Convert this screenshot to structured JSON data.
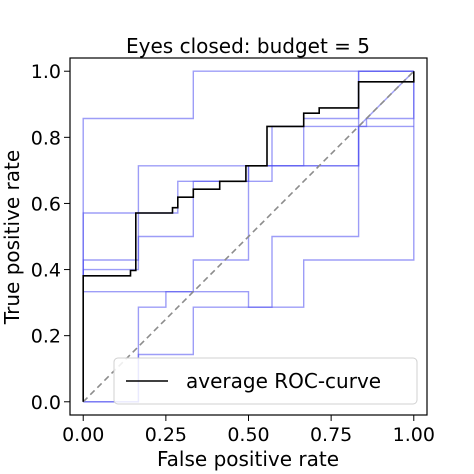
{
  "chart_data": {
    "type": "line",
    "title": "Eyes closed: budget = 5",
    "xlabel": "False positive rate",
    "ylabel": "True positive rate",
    "xlim": [
      -0.04,
      1.04
    ],
    "ylim": [
      -0.04,
      1.04
    ],
    "xticks": [
      0.0,
      0.25,
      0.5,
      0.75,
      1.0
    ],
    "xtick_labels": [
      "0.00",
      "0.25",
      "0.50",
      "0.75",
      "1.00"
    ],
    "yticks": [
      0.0,
      0.2,
      0.4,
      0.6,
      0.8,
      1.0
    ],
    "ytick_labels": [
      "0.0",
      "0.2",
      "0.4",
      "0.6",
      "0.8",
      "1.0"
    ],
    "grid": false,
    "legend": {
      "entries": [
        "average ROC-curve"
      ],
      "placement": "lower-right"
    },
    "colors": {
      "fold": "#4d4df0",
      "average": "#000000",
      "chance": "#8c8c8c"
    },
    "series": [
      {
        "x": [
          0,
          0,
          0.167,
          0.167,
          0.333,
          0.333,
          0.5,
          0.5,
          0.667,
          0.667,
          1.0
        ],
        "y": [
          0,
          0.857,
          0.857,
          0.857,
          0.857,
          1.0,
          1.0,
          1.0,
          1.0,
          1.0,
          1.0
        ]
      },
      {
        "x": [
          0,
          0,
          0.167,
          0.167,
          0.5,
          0.5,
          0.833,
          0.833,
          1.0,
          1.0
        ],
        "y": [
          0,
          0.429,
          0.429,
          0.714,
          0.714,
          0.714,
          0.714,
          1.0,
          1.0,
          1.0
        ]
      },
      {
        "x": [
          0,
          0,
          0.143,
          0.143,
          0.286,
          0.286,
          0.571,
          0.571,
          0.857,
          0.857,
          1.0,
          1.0
        ],
        "y": [
          0,
          0.571,
          0.571,
          0.571,
          0.571,
          0.667,
          0.667,
          0.833,
          0.833,
          0.857,
          0.857,
          1.0
        ]
      },
      {
        "x": [
          0,
          0,
          0.167,
          0.167,
          0.333,
          0.333,
          0.5,
          0.5,
          0.667,
          0.667,
          0.833,
          0.833,
          1.0,
          1.0
        ],
        "y": [
          0,
          0.4,
          0.4,
          0.5,
          0.5,
          0.667,
          0.667,
          0.714,
          0.714,
          0.857,
          0.857,
          1.0,
          1.0,
          1.0
        ]
      },
      {
        "x": [
          0,
          0,
          0.167,
          0.167,
          0.333,
          0.333,
          0.5,
          0.5,
          0.667,
          0.667,
          0.833,
          0.833,
          1.0
        ],
        "y": [
          0,
          0.333,
          0.333,
          0.333,
          0.333,
          0.429,
          0.429,
          0.714,
          0.714,
          0.714,
          0.714,
          0.833,
          0.833
        ]
      },
      {
        "x": [
          0,
          0,
          0.167,
          0.167,
          0.333,
          0.333,
          0.571,
          0.571,
          0.833,
          0.833,
          1.0
        ],
        "y": [
          0,
          0,
          0,
          0.143,
          0.143,
          0.286,
          0.286,
          0.5,
          0.5,
          0.833,
          1.0
        ]
      },
      {
        "x": [
          0,
          0,
          0.167,
          0.167,
          0.25,
          0.25,
          0.5,
          0.5,
          0.667,
          0.667,
          1.0,
          1.0
        ],
        "y": [
          0,
          0.0,
          0.0,
          0.286,
          0.286,
          0.333,
          0.333,
          0.286,
          0.286,
          0.429,
          0.429,
          1.0
        ]
      }
    ],
    "average": {
      "name": "average ROC-curve",
      "x": [
        0,
        0,
        0.143,
        0.143,
        0.159,
        0.159,
        0.27,
        0.27,
        0.286,
        0.286,
        0.333,
        0.333,
        0.413,
        0.413,
        0.492,
        0.492,
        0.556,
        0.556,
        0.667,
        0.667,
        0.714,
        0.714,
        0.833,
        0.833,
        1.0,
        1.0
      ],
      "y": [
        0,
        0.381,
        0.381,
        0.397,
        0.397,
        0.571,
        0.571,
        0.587,
        0.587,
        0.619,
        0.619,
        0.643,
        0.643,
        0.667,
        0.667,
        0.714,
        0.714,
        0.833,
        0.833,
        0.873,
        0.873,
        0.889,
        0.889,
        0.968,
        0.968,
        1.0
      ]
    },
    "chance": {
      "x": [
        0,
        1
      ],
      "y": [
        0,
        1
      ]
    }
  }
}
